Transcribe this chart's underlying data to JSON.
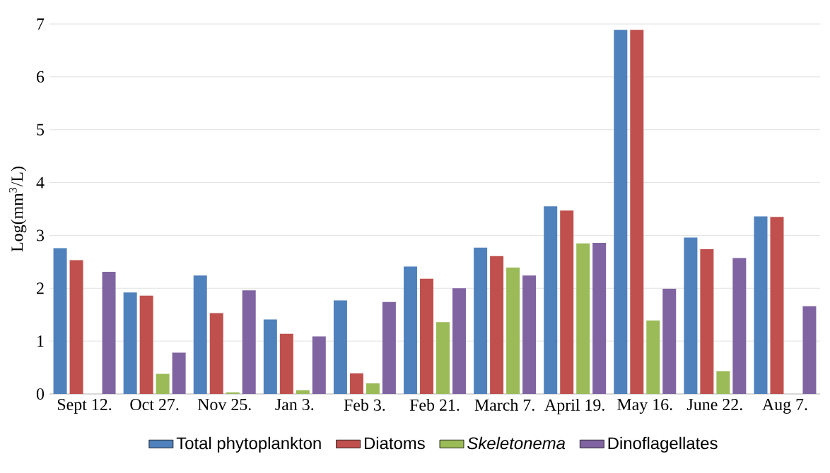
{
  "chart_data": {
    "type": "bar",
    "ylabel": "Log(mm$^{3}$/L)",
    "categories": [
      "Sept 12.",
      "Oct 27.",
      "Nov 25.",
      "Jan 3.",
      "Feb 3.",
      "Feb 21.",
      "March 7.",
      "April 19.",
      "May 16.",
      "June 22.",
      "Aug 7."
    ],
    "series": [
      {
        "name": "Total phytoplankton",
        "color": "#4f81bd",
        "values": [
          2.76,
          1.92,
          2.24,
          1.41,
          1.77,
          2.41,
          2.77,
          3.55,
          6.89,
          2.96,
          3.36
        ]
      },
      {
        "name": "Diatoms",
        "color": "#c0504d",
        "values": [
          2.53,
          1.86,
          1.53,
          1.14,
          0.39,
          2.18,
          2.61,
          3.47,
          6.89,
          2.74,
          3.35
        ]
      },
      {
        "name": "*Skeletonema*",
        "color": "#9bbb59",
        "values": [
          null,
          0.38,
          0.03,
          0.07,
          0.2,
          1.36,
          2.39,
          2.85,
          1.39,
          0.43,
          null
        ]
      },
      {
        "name": "Dinoflagellates",
        "color": "#8064a2",
        "values": [
          2.31,
          0.78,
          1.96,
          1.09,
          1.74,
          2.0,
          2.24,
          2.86,
          1.99,
          2.57,
          1.66
        ]
      }
    ],
    "ylim": [
      0,
      7
    ],
    "yticks": [
      0,
      1,
      2,
      3,
      4,
      5,
      6,
      7
    ],
    "grid": "y",
    "legend": "bottom"
  }
}
